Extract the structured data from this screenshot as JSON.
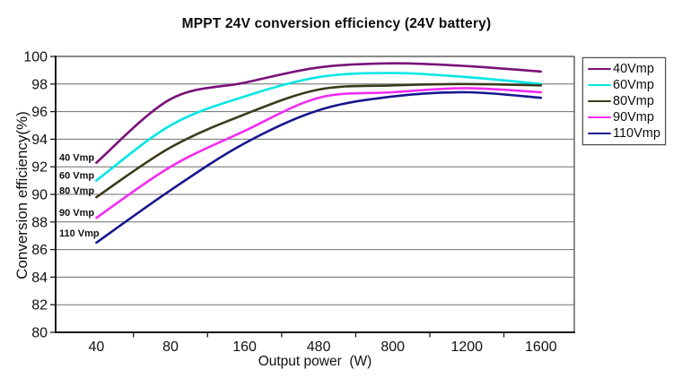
{
  "chart_data": {
    "type": "line",
    "title": "MPPT 24V conversion efficiency (24V battery)",
    "xlabel": "Output power  (W)",
    "ylabel": "Conversion efficiency(%)",
    "ylim": [
      80,
      100
    ],
    "yticks": [
      100,
      98,
      96,
      94,
      92,
      90,
      88,
      86,
      84,
      82,
      80
    ],
    "categories": [
      "40",
      "80",
      "160",
      "480",
      "800",
      "1200",
      "1600"
    ],
    "grid": "horizontal",
    "legend_position": "right",
    "series": [
      {
        "name": "40Vmp",
        "color": "#7A117A",
        "values": [
          92.3,
          96.9,
          98.1,
          99.2,
          99.5,
          99.3,
          98.9
        ]
      },
      {
        "name": "60Vmp",
        "color": "#00E6E6",
        "values": [
          91.0,
          95.0,
          97.1,
          98.5,
          98.8,
          98.5,
          98.0
        ]
      },
      {
        "name": "80Vmp",
        "color": "#3B3B1C",
        "values": [
          89.8,
          93.4,
          95.8,
          97.6,
          97.9,
          98.0,
          97.9
        ]
      },
      {
        "name": "90Vmp",
        "color": "#F32BF3",
        "values": [
          88.3,
          92.0,
          94.6,
          97.0,
          97.4,
          97.7,
          97.4
        ]
      },
      {
        "name": "110Vmp",
        "color": "#17178F",
        "values": [
          86.5,
          90.3,
          93.7,
          96.1,
          97.1,
          97.4,
          97.0
        ]
      }
    ],
    "annotations": [
      {
        "text": "40 Vmp",
        "y": 92.7
      },
      {
        "text": "60 Vmp",
        "y": 91.4
      },
      {
        "text": "80 Vmp",
        "y": 90.3
      },
      {
        "text": "90 Vmp",
        "y": 88.7
      },
      {
        "text": "110 Vmp",
        "y": 87.2
      }
    ],
    "colors": {
      "gridline": "#6e6e6e",
      "axis": "#1a1a1a",
      "plot_border": "#4a4a4a",
      "text": "#111111"
    }
  }
}
